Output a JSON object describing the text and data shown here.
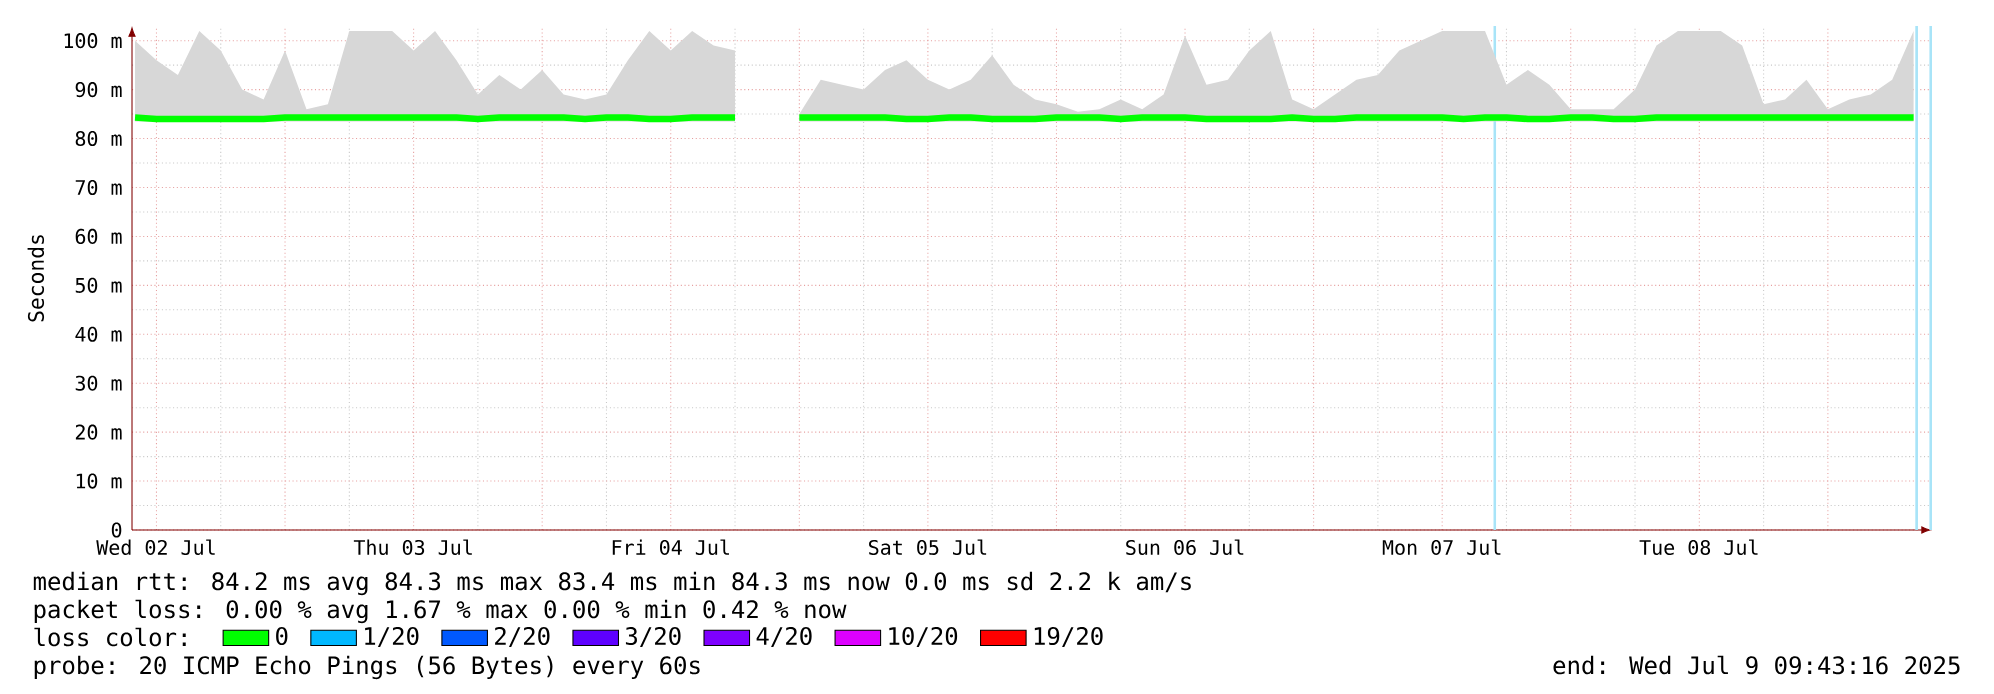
{
  "chart_data": {
    "type": "line",
    "ylabel": "Seconds",
    "x": [
      "2025-07-02T10:00",
      "2025-07-02T12:00",
      "2025-07-02T14:00",
      "2025-07-02T16:00",
      "2025-07-02T18:00",
      "2025-07-02T20:00",
      "2025-07-02T22:00",
      "2025-07-03T00:00",
      "2025-07-03T02:00",
      "2025-07-03T04:00",
      "2025-07-03T06:00",
      "2025-07-03T08:00",
      "2025-07-03T10:00",
      "2025-07-03T12:00",
      "2025-07-03T14:00",
      "2025-07-03T16:00",
      "2025-07-03T18:00",
      "2025-07-03T20:00",
      "2025-07-03T22:00",
      "2025-07-04T00:00",
      "2025-07-04T02:00",
      "2025-07-04T04:00",
      "2025-07-04T06:00",
      "2025-07-04T08:00",
      "2025-07-04T10:00",
      "2025-07-04T12:00",
      "2025-07-04T14:00",
      "2025-07-04T16:00",
      "2025-07-04T18:00",
      "2025-07-04T20:00",
      "2025-07-04T22:00",
      "2025-07-05T00:00",
      "2025-07-05T02:00",
      "2025-07-05T04:00",
      "2025-07-05T06:00",
      "2025-07-05T08:00",
      "2025-07-05T10:00",
      "2025-07-05T12:00",
      "2025-07-05T14:00",
      "2025-07-05T16:00",
      "2025-07-05T18:00",
      "2025-07-05T20:00",
      "2025-07-05T22:00",
      "2025-07-06T00:00",
      "2025-07-06T02:00",
      "2025-07-06T04:00",
      "2025-07-06T06:00",
      "2025-07-06T08:00",
      "2025-07-06T10:00",
      "2025-07-06T12:00",
      "2025-07-06T14:00",
      "2025-07-06T16:00",
      "2025-07-06T18:00",
      "2025-07-06T20:00",
      "2025-07-06T22:00",
      "2025-07-07T00:00",
      "2025-07-07T02:00",
      "2025-07-07T04:00",
      "2025-07-07T06:00",
      "2025-07-07T08:00",
      "2025-07-07T10:00",
      "2025-07-07T12:00",
      "2025-07-07T14:00",
      "2025-07-07T16:00",
      "2025-07-07T18:00",
      "2025-07-07T20:00",
      "2025-07-07T22:00",
      "2025-07-08T00:00",
      "2025-07-08T02:00",
      "2025-07-08T04:00",
      "2025-07-08T06:00",
      "2025-07-08T08:00",
      "2025-07-08T10:00",
      "2025-07-08T12:00",
      "2025-07-08T14:00",
      "2025-07-08T16:00",
      "2025-07-08T18:00",
      "2025-07-08T20:00",
      "2025-07-08T22:00",
      "2025-07-09T00:00",
      "2025-07-09T02:00",
      "2025-07-09T04:00",
      "2025-07-09T06:00",
      "2025-07-09T08:00"
    ],
    "series": [
      {
        "name": "0",
        "color": "#00ff00",
        "values": [
          84.3,
          84.0,
          84.0,
          84.0,
          84.0,
          84.0,
          84.0,
          84.3,
          84.3,
          84.3,
          84.3,
          84.3,
          84.3,
          84.3,
          84.3,
          84.3,
          84.0,
          84.3,
          84.3,
          84.3,
          84.3,
          84.0,
          84.3,
          84.3,
          84.0,
          84.0,
          84.3,
          84.3,
          84.3,
          null,
          null,
          84.3,
          84.3,
          84.3,
          84.3,
          84.3,
          84.0,
          84.0,
          84.3,
          84.3,
          84.0,
          84.0,
          84.0,
          84.3,
          84.3,
          84.3,
          84.0,
          84.3,
          84.3,
          84.3,
          84.0,
          84.0,
          84.0,
          84.0,
          84.3,
          84.0,
          84.0,
          84.3,
          84.3,
          84.3,
          84.3,
          84.3,
          84.0,
          84.3,
          84.3,
          84.0,
          84.0,
          84.3,
          84.3,
          84.0,
          84.0,
          84.3,
          84.3,
          84.3,
          84.3,
          84.3,
          84.3,
          84.3,
          84.3,
          84.3,
          84.3,
          84.3,
          84.3,
          84.3
        ],
        "lower": [
          83.5,
          83.5,
          83.5,
          83.5,
          83.5,
          83.5,
          83.5,
          83.5,
          83.5,
          83.5,
          83.5,
          83.5,
          83.5,
          83.5,
          83.5,
          83.5,
          83.5,
          83.5,
          83.5,
          83.5,
          83.5,
          83.5,
          83.5,
          83.5,
          83.5,
          83.5,
          83.5,
          83.5,
          83.5,
          null,
          null,
          83.5,
          83.5,
          83.5,
          83.5,
          83.5,
          83.5,
          83.5,
          83.5,
          83.5,
          83.5,
          83.5,
          83.5,
          83.5,
          83.5,
          83.5,
          83.5,
          83.5,
          83.5,
          83.5,
          83.5,
          83.5,
          83.5,
          83.5,
          83.5,
          83.5,
          83.5,
          83.5,
          83.5,
          83.5,
          83.5,
          83.5,
          83.5,
          83.5,
          83.5,
          83.5,
          83.5,
          83.5,
          83.5,
          83.5,
          83.5,
          83.5,
          83.5,
          83.5,
          83.5,
          83.5,
          83.5,
          83.5,
          83.5,
          83.5,
          83.5,
          83.5,
          83.5,
          83.5
        ],
        "upper": [
          100,
          96,
          93,
          102,
          98,
          90,
          88,
          98,
          86,
          87,
          102,
          102,
          102,
          98,
          102,
          96,
          89,
          93,
          90,
          94,
          89,
          88,
          89,
          96,
          102,
          98,
          102,
          99,
          98,
          null,
          null,
          85,
          92,
          91,
          90,
          94,
          96,
          92,
          90,
          92,
          97,
          91,
          88,
          87,
          85.5,
          86,
          88,
          86,
          89,
          101,
          91,
          92,
          98,
          102,
          88,
          86,
          89,
          92,
          93,
          98,
          100,
          102,
          102,
          102,
          91,
          94,
          91,
          86,
          86,
          86,
          90,
          99,
          102,
          102,
          102,
          99,
          87,
          88,
          92,
          86,
          88,
          89,
          92,
          102
        ]
      },
      {
        "name": "1/20",
        "color": "#00b8ff",
        "values": [
          null,
          null,
          null,
          null,
          null,
          null,
          null,
          null,
          null,
          null,
          null,
          null,
          null,
          null,
          null,
          null,
          null,
          null,
          null,
          null,
          null,
          null,
          null,
          null,
          null,
          null,
          null,
          null,
          null,
          null,
          null,
          null,
          null,
          null,
          null,
          null,
          null,
          null,
          null,
          null,
          null,
          null,
          null,
          null,
          null,
          null,
          null,
          null,
          null,
          null,
          null,
          null,
          null,
          null,
          null,
          null,
          null,
          null,
          null,
          null,
          null,
          null,
          null,
          null,
          null,
          null,
          null,
          null,
          null,
          null,
          null,
          null,
          null,
          null,
          null,
          null,
          null,
          null,
          null,
          null,
          null,
          null,
          null,
          null
        ]
      },
      {
        "name": "2/20",
        "color": "#0059ff",
        "values": [
          null,
          null,
          null,
          null,
          null,
          null,
          null,
          null,
          null,
          null,
          null,
          null,
          null,
          null,
          null,
          null,
          null,
          null,
          null,
          null,
          null,
          null,
          null,
          null,
          null,
          null,
          null,
          null,
          null,
          null,
          null,
          null,
          null,
          null,
          null,
          null,
          null,
          null,
          null,
          null,
          null,
          null,
          null,
          null,
          null,
          null,
          null,
          null,
          null,
          null,
          null,
          null,
          null,
          null,
          null,
          null,
          null,
          null,
          null,
          null,
          null,
          null,
          null,
          null,
          null,
          null,
          null,
          null,
          null,
          null,
          null,
          null,
          null,
          null,
          null,
          null,
          null,
          null,
          null,
          null,
          null,
          null,
          null,
          null
        ]
      },
      {
        "name": "3/20",
        "color": "#5e00ff",
        "values": [
          null,
          null,
          null,
          null,
          null,
          null,
          null,
          null,
          null,
          null,
          null,
          null,
          null,
          null,
          null,
          null,
          null,
          null,
          null,
          null,
          null,
          null,
          null,
          null,
          null,
          null,
          null,
          null,
          null,
          null,
          null,
          null,
          null,
          null,
          null,
          null,
          null,
          null,
          null,
          null,
          null,
          null,
          null,
          null,
          null,
          null,
          null,
          null,
          null,
          null,
          null,
          null,
          null,
          null,
          null,
          null,
          null,
          null,
          null,
          null,
          null,
          null,
          null,
          null,
          null,
          null,
          null,
          null,
          null,
          null,
          null,
          null,
          null,
          null,
          null,
          null,
          null,
          null,
          null,
          null,
          null,
          null,
          null,
          null
        ]
      },
      {
        "name": "4/20",
        "color": "#7e00ff",
        "values": [
          null,
          null,
          null,
          null,
          null,
          null,
          null,
          null,
          null,
          null,
          null,
          null,
          null,
          null,
          null,
          null,
          null,
          null,
          null,
          null,
          null,
          null,
          null,
          null,
          null,
          null,
          null,
          null,
          null,
          null,
          null,
          null,
          null,
          null,
          null,
          null,
          null,
          null,
          null,
          null,
          null,
          null,
          null,
          null,
          null,
          null,
          null,
          null,
          null,
          null,
          null,
          null,
          null,
          null,
          null,
          null,
          null,
          null,
          null,
          null,
          null,
          null,
          null,
          null,
          null,
          null,
          null,
          null,
          null,
          null,
          null,
          null,
          null,
          null,
          null,
          null,
          null,
          null,
          null,
          null,
          null,
          null,
          null,
          null
        ]
      },
      {
        "name": "10/20",
        "color": "#dd00ff",
        "values": [
          null,
          null,
          null,
          null,
          null,
          null,
          null,
          null,
          null,
          null,
          null,
          null,
          null,
          null,
          null,
          null,
          null,
          null,
          null,
          null,
          null,
          null,
          null,
          null,
          null,
          null,
          null,
          null,
          null,
          null,
          null,
          null,
          null,
          null,
          null,
          null,
          null,
          null,
          null,
          null,
          null,
          null,
          null,
          null,
          null,
          null,
          null,
          null,
          null,
          null,
          null,
          null,
          null,
          null,
          null,
          null,
          null,
          null,
          null,
          null,
          null,
          null,
          null,
          null,
          null,
          null,
          null,
          null,
          null,
          null,
          null,
          null,
          null,
          null,
          null,
          null,
          null,
          null,
          null,
          null,
          null,
          null,
          null,
          null
        ]
      },
      {
        "name": "19/20",
        "color": "#ff0000",
        "values": [
          null,
          null,
          null,
          null,
          null,
          null,
          null,
          null,
          null,
          null,
          null,
          null,
          null,
          null,
          null,
          null,
          null,
          null,
          null,
          null,
          null,
          null,
          null,
          null,
          null,
          null,
          null,
          null,
          null,
          null,
          null,
          null,
          null,
          null,
          null,
          null,
          null,
          null,
          null,
          null,
          null,
          null,
          null,
          null,
          null,
          null,
          null,
          null,
          null,
          null,
          null,
          null,
          null,
          null,
          null,
          null,
          null,
          null,
          null,
          null,
          null,
          null,
          null,
          null,
          null,
          null,
          null,
          null,
          null,
          null,
          null,
          null,
          null,
          null,
          null,
          null,
          null,
          null,
          null,
          null,
          null,
          null,
          null,
          null
        ]
      }
    ],
    "xlim": [
      "2025-07-02T09:43",
      "2025-07-09T09:43"
    ],
    "xticks": [
      {
        "value": "2025-07-02T12:00",
        "label": "Wed 02 Jul"
      },
      {
        "value": "2025-07-03T00:00",
        "label": null
      },
      {
        "value": "2025-07-03T12:00",
        "label": "Thu 03 Jul"
      },
      {
        "value": "2025-07-04T00:00",
        "label": null
      },
      {
        "value": "2025-07-04T12:00",
        "label": "Fri 04 Jul"
      },
      {
        "value": "2025-07-05T00:00",
        "label": null
      },
      {
        "value": "2025-07-05T12:00",
        "label": "Sat 05 Jul"
      },
      {
        "value": "2025-07-06T00:00",
        "label": null
      },
      {
        "value": "2025-07-06T12:00",
        "label": "Sun 06 Jul"
      },
      {
        "value": "2025-07-07T00:00",
        "label": null
      },
      {
        "value": "2025-07-07T12:00",
        "label": "Mon 07 Jul"
      },
      {
        "value": "2025-07-08T00:00",
        "label": null
      },
      {
        "value": "2025-07-08T12:00",
        "label": "Tue 08 Jul"
      },
      {
        "value": "2025-07-09T00:00",
        "label": null
      }
    ],
    "ylim": [
      0,
      103
    ],
    "yticks": [
      0,
      {
        "value": 10,
        "label": "10 m"
      },
      {
        "value": 20,
        "label": "20 m"
      },
      {
        "value": 30,
        "label": "30 m"
      },
      {
        "value": 40,
        "label": "40 m"
      },
      {
        "value": 50,
        "label": "50 m"
      },
      {
        "value": 60,
        "label": "60 m"
      },
      {
        "value": 70,
        "label": "70 m"
      },
      {
        "value": 80,
        "label": "80 m"
      },
      {
        "value": 90,
        "label": "90 m"
      },
      {
        "value": 100,
        "label": "100 m"
      }
    ],
    "ref_lines": [
      {
        "axis": "x",
        "value": "2025-07-07T16:55",
        "color": "#a8e4f8"
      },
      {
        "axis": "x",
        "value": "2025-07-09T08:17",
        "color": "#a8e4f8"
      },
      {
        "axis": "x",
        "value": "2025-07-09T09:36",
        "color": "#a8e4f8"
      }
    ],
    "grid": true,
    "legend": "bottom",
    "annotations": [
      "median rtt:  84.2 ms avg  84.3 ms max  83.4 ms min  84.3 ms now  0.0 ms sd  2.2 k am/s",
      "packet loss: 0.00 % avg  1.67 % max  0.00 % min  0.42 % now",
      "loss color:",
      "probe:       20 ICMP Echo Pings (56 Bytes) every 60s",
      "end: Wed Jul  9 09:43:16 2025"
    ]
  }
}
